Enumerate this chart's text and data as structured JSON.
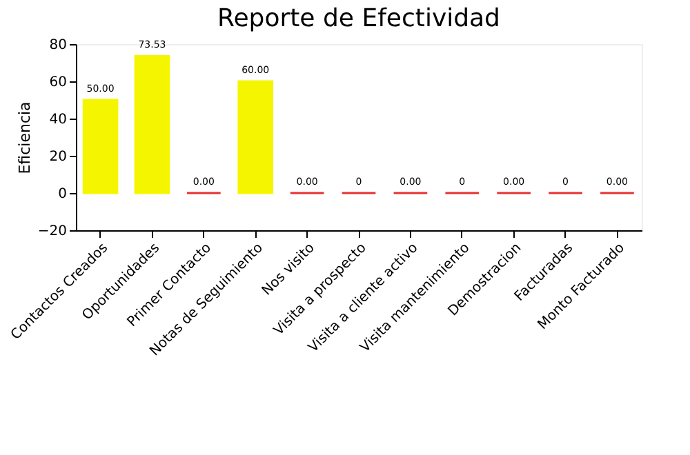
{
  "chart_data": {
    "type": "bar",
    "title": "Reporte de Efectividad",
    "ylabel": "Eficiencia",
    "categories": [
      "Contactos Creados",
      "Oportunidades",
      "Primer Contacto",
      "Notas de Seguimiento",
      "Nos visito",
      "Visita a prospecto",
      "Visita a cliente activo",
      "Visita mantenimiento",
      "Demostracion",
      "Facturadas",
      "Monto Facturado"
    ],
    "values": [
      50,
      73.53,
      0,
      60,
      0,
      0,
      0,
      0,
      0,
      0,
      0
    ],
    "value_labels": [
      "50.00",
      "73.53",
      "0.00",
      "60.00",
      "0.00",
      "0",
      "0.00",
      "0",
      "0.00",
      "0",
      "0.00"
    ],
    "colors": [
      "#f5f500",
      "#f5f500",
      "#e83030",
      "#f5f500",
      "#e83030",
      "#e83030",
      "#e83030",
      "#e83030",
      "#e83030",
      "#e83030",
      "#e83030"
    ],
    "ylim": [
      -20,
      80
    ],
    "yticks": [
      -20,
      0,
      20,
      40,
      60,
      80
    ],
    "grid": false
  }
}
